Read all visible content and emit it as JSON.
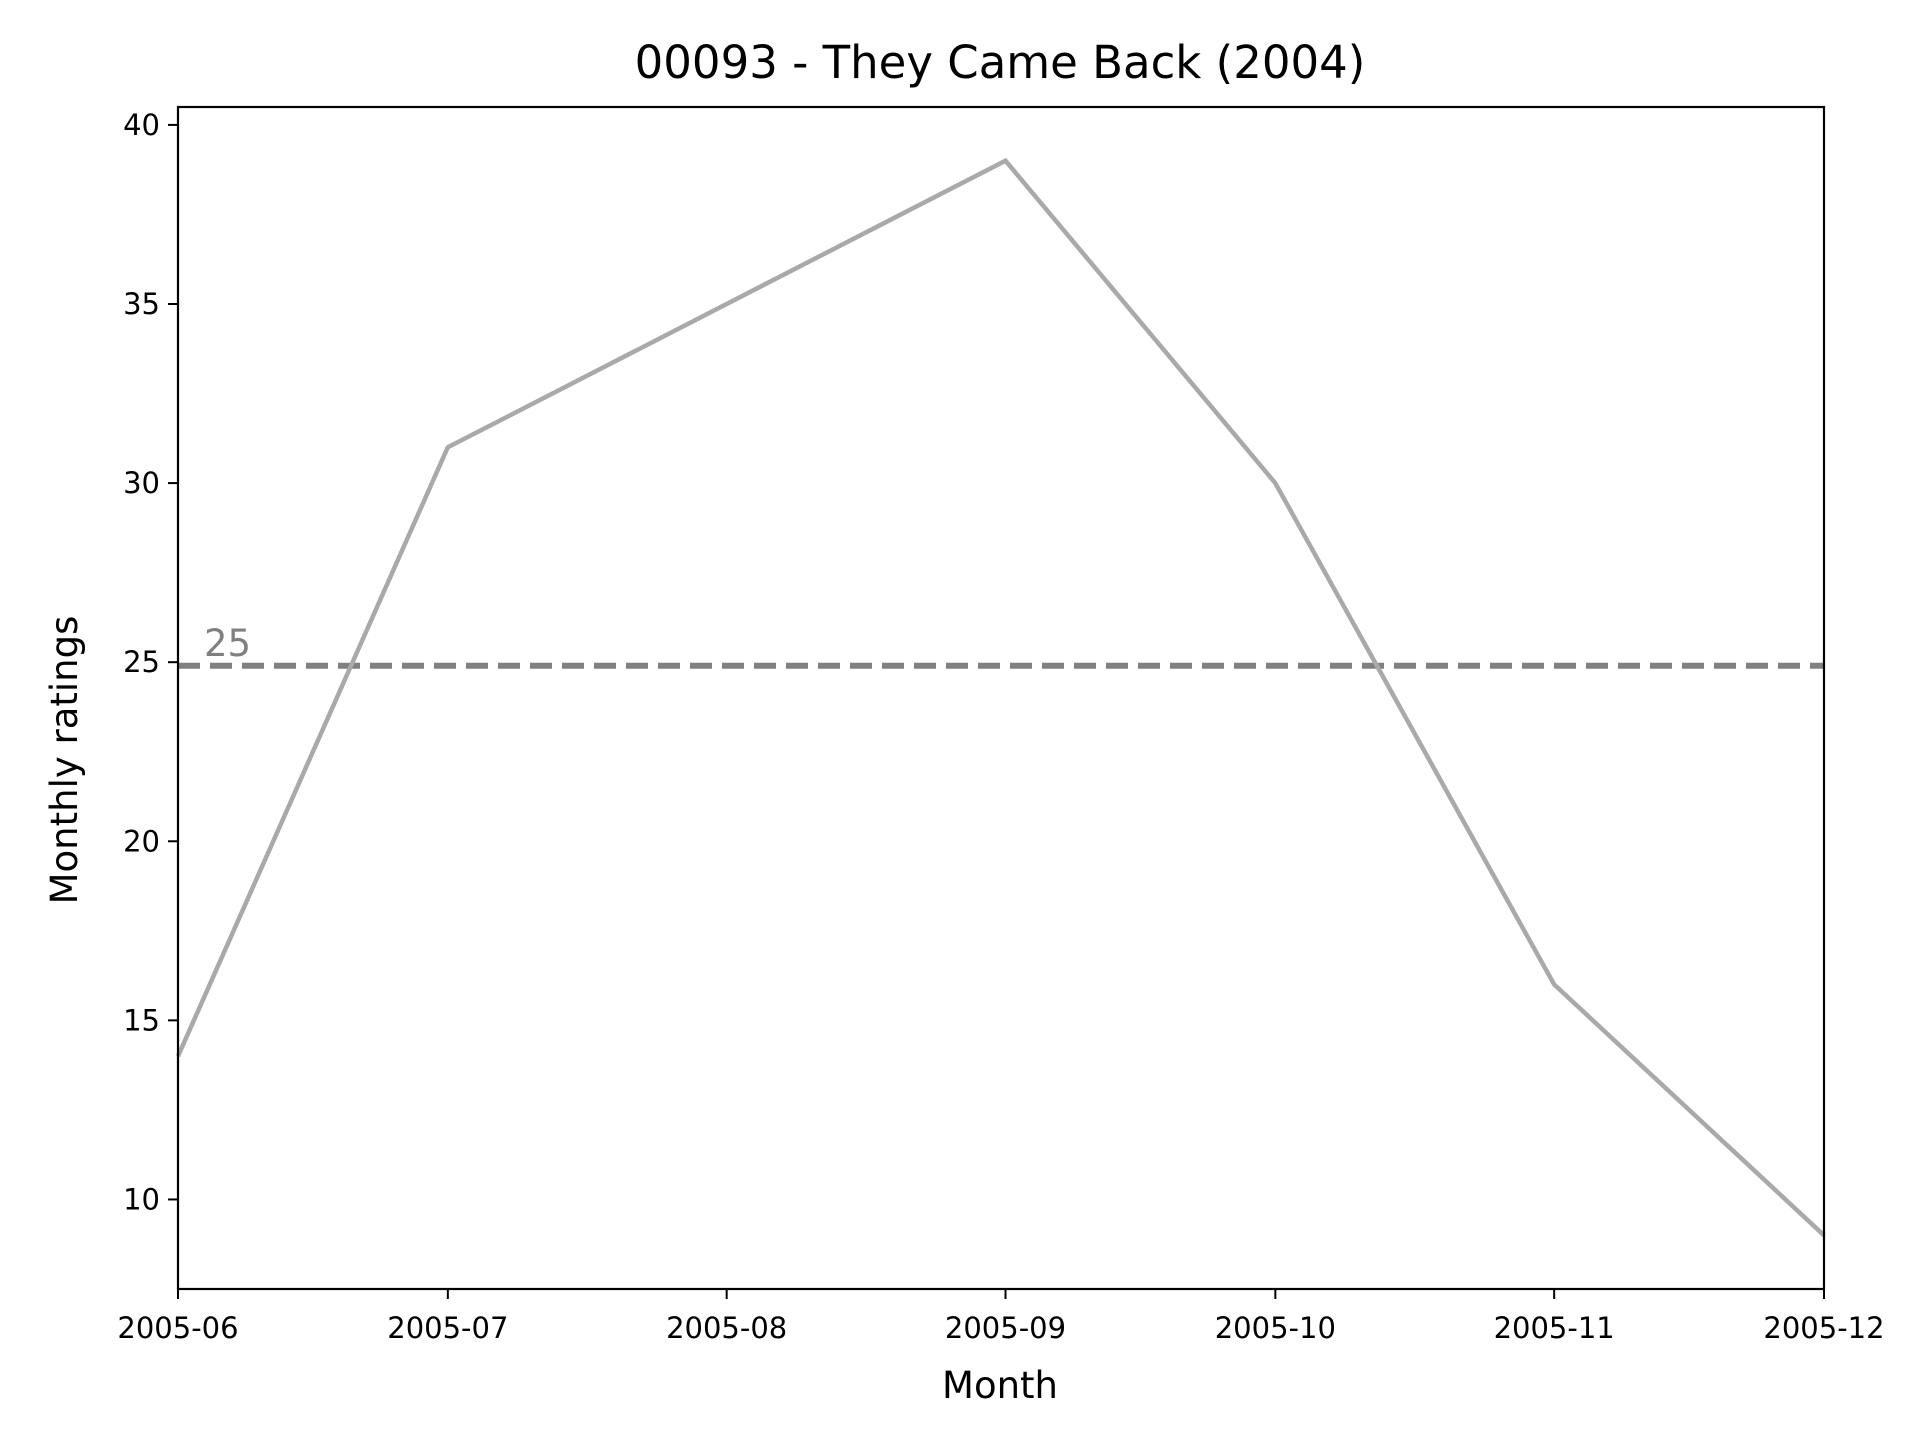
{
  "chart_data": {
    "type": "line",
    "title": "00093 - They Came Back (2004)",
    "xlabel": "Month",
    "ylabel": "Monthly ratings",
    "x": [
      "2005-06",
      "2005-07",
      "2005-08",
      "2005-09",
      "2005-10",
      "2005-11",
      "2005-12"
    ],
    "series": [
      {
        "points": [
          {
            "x": "2005-06",
            "y": 14
          },
          {
            "x": "2005-07",
            "y": 31
          },
          {
            "x": "2005-09",
            "y": 39
          },
          {
            "x": "2005-10",
            "y": 30
          },
          {
            "x": "2005-11",
            "y": 16
          },
          {
            "x": "2005-12",
            "y": 9
          }
        ],
        "color": "#a9a9a9"
      }
    ],
    "reference_line": {
      "y": 24.9,
      "label": "25",
      "color": "#808080",
      "style": "dashed"
    },
    "yticks": [
      10,
      15,
      20,
      25,
      30,
      35,
      40
    ],
    "ylim": [
      7.5,
      40.5
    ],
    "xlim": [
      "2005-06",
      "2005-12"
    ],
    "grid": false,
    "legend": false
  }
}
